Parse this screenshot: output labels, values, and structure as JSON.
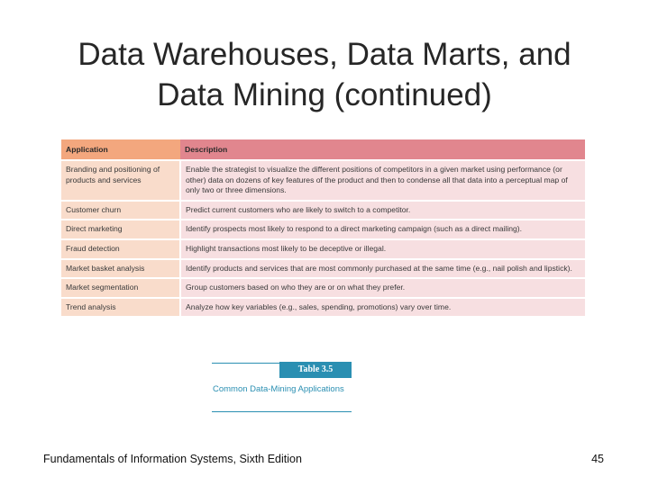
{
  "slide": {
    "title_line1": "Data Warehouses, Data Marts, and",
    "title_line2": "Data Mining (continued)"
  },
  "table": {
    "headers": [
      "Application",
      "Description"
    ],
    "rows": [
      {
        "application": "Branding and positioning of products and services",
        "description": "Enable the strategist to visualize the different positions of competitors in a given market using performance (or other) data on dozens of key features of the product and then to condense all that data into a perceptual map of only two or three dimensions."
      },
      {
        "application": "Customer churn",
        "description": "Predict current customers who are likely to switch to a competitor."
      },
      {
        "application": "Direct marketing",
        "description": "Identify prospects most likely to respond to a direct marketing campaign (such as a direct mailing)."
      },
      {
        "application": "Fraud detection",
        "description": "Highlight transactions most likely to be deceptive or illegal."
      },
      {
        "application": "Market basket analysis",
        "description": "Identify products and services that are most commonly purchased at the same time (e.g., nail polish and lipstick)."
      },
      {
        "application": "Market segmentation",
        "description": "Group customers based on who they are or on what they prefer."
      },
      {
        "application": "Trend analysis",
        "description": "Analyze how key variables (e.g., sales, spending, promotions) vary over time."
      }
    ]
  },
  "caption": {
    "label": "Table 3.5",
    "text": "Common Data-Mining Applications"
  },
  "footer": {
    "book": "Fundamentals of Information Systems, Sixth Edition",
    "page_number": "45"
  },
  "colors": {
    "header_application": "#f3a77e",
    "header_description": "#e1868e",
    "cell_application": "#f9dccb",
    "cell_description": "#f7dfe1",
    "caption_accent": "#2a8fb2"
  }
}
